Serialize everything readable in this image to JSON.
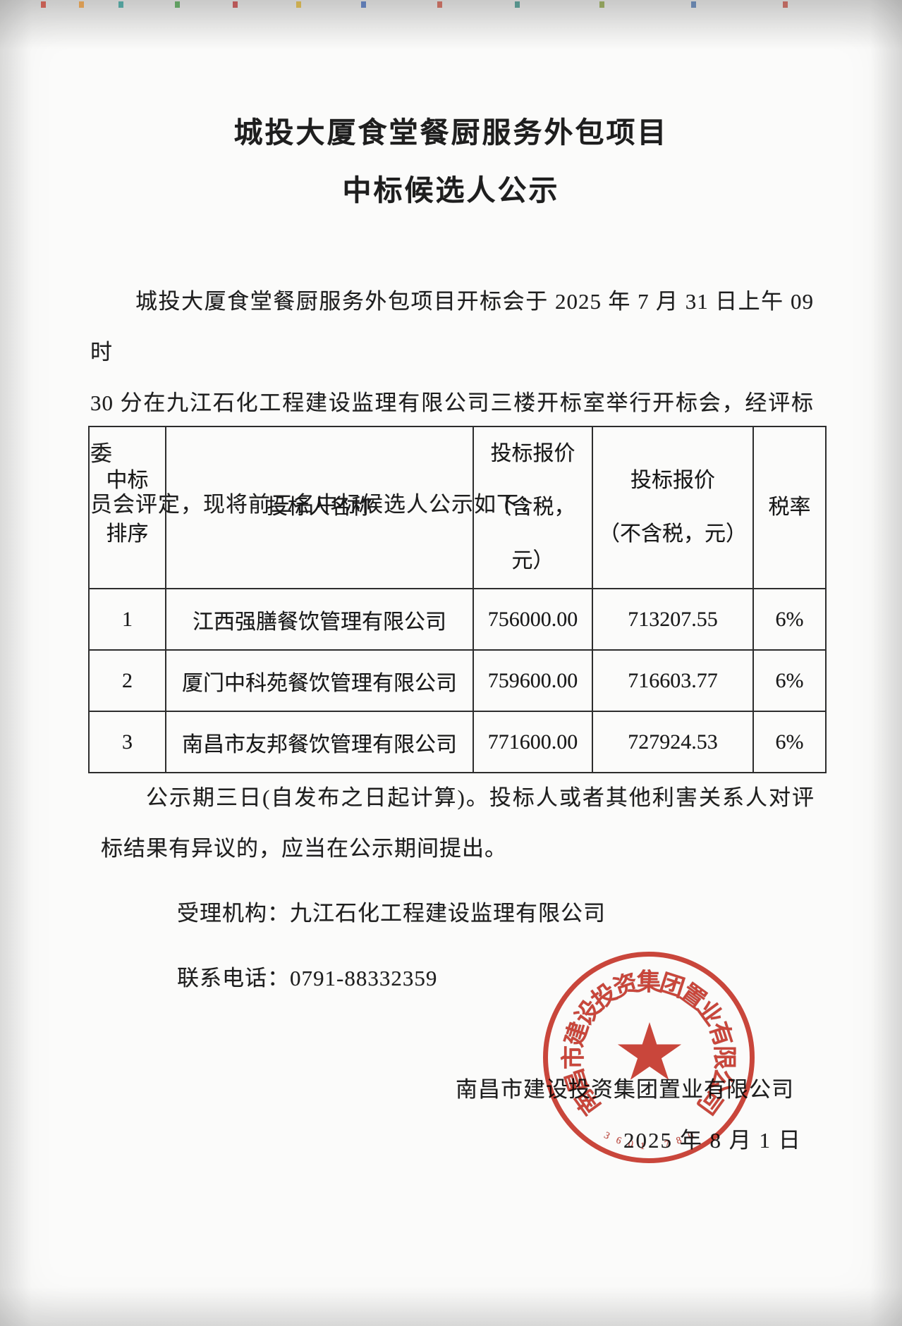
{
  "doc": {
    "title_line1": "城投大厦食堂餐厨服务外包项目",
    "title_line2": "中标候选人公示",
    "paragraph1_lines": [
      "城投大厦食堂餐厨服务外包项目开标会于 2025 年 7 月 31 日上午 09 时",
      "30 分在九江石化工程建设监理有限公司三楼开标室举行开标会，经评标委",
      "员会评定，现将前三名中标候选人公示如下："
    ],
    "paragraph2_lines": [
      "公示期三日(自发布之日起计算)。投标人或者其他利害关系人对评",
      "标结果有异议的，应当在公示期间提出。"
    ]
  },
  "table": {
    "headers": {
      "rank": [
        "中标",
        "排序"
      ],
      "bidder": [
        "投标人名称"
      ],
      "price_with_tax": [
        "投标报价",
        "（含税，",
        "元）"
      ],
      "price_without_tax": [
        "投标报价",
        "（不含税，元）"
      ],
      "tax_rate": [
        "税率"
      ]
    },
    "rows": [
      {
        "rank": "1",
        "bidder": "江西强膳餐饮管理有限公司",
        "price_with_tax": "756000.00",
        "price_without_tax": "713207.55",
        "tax_rate": "6%"
      },
      {
        "rank": "2",
        "bidder": "厦门中科苑餐饮管理有限公司",
        "price_with_tax": "759600.00",
        "price_without_tax": "716603.77",
        "tax_rate": "6%"
      },
      {
        "rank": "3",
        "bidder": "南昌市友邦餐饮管理有限公司",
        "price_with_tax": "771600.00",
        "price_without_tax": "727924.53",
        "tax_rate": "6%"
      }
    ]
  },
  "footer": {
    "agency_line": "受理机构：九江石化工程建设监理有限公司",
    "phone_line": "联系电话：0791-88332359",
    "signer": "南昌市建设投资集团置业有限公司",
    "date": "2025 年 8 月 1 日"
  },
  "seal": {
    "ring_text": "南昌市建设投资集团置业有限公司",
    "serial": "3601 780",
    "color": "#c9372b"
  }
}
